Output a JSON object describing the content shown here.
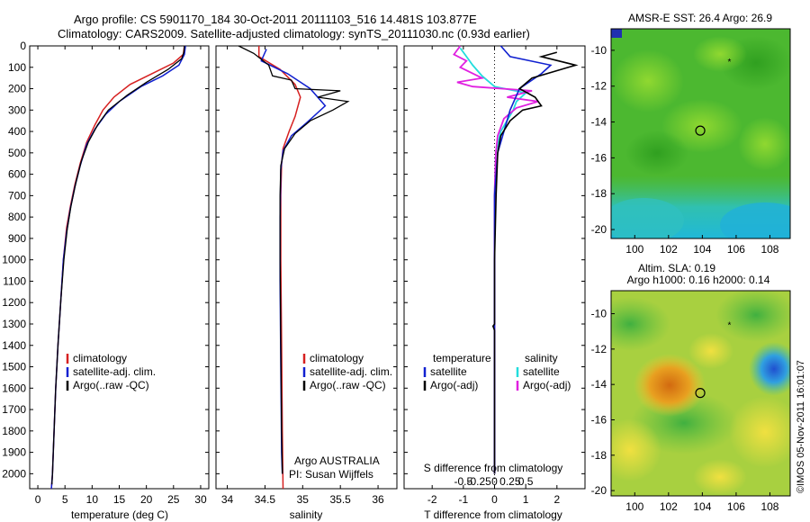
{
  "header": {
    "line1": "Argo profile: CS 5901170_184 30-Oct-2011 20111103_516 14.481S 103.877E",
    "line2": "Climatology: CARS2009. Satellite-adjusted climatology: synTS_20111030.nc (0.93d earlier)"
  },
  "depth_axis": {
    "ticks": [
      0,
      100,
      200,
      300,
      400,
      500,
      600,
      700,
      800,
      900,
      1000,
      1100,
      1200,
      1300,
      1400,
      1500,
      1600,
      1700,
      1800,
      1900,
      2000
    ],
    "range": [
      0,
      2070
    ]
  },
  "colors": {
    "climatology": "#d62020",
    "satellite": "#1020d0",
    "argo": "#000000",
    "sat_sal": "#22dddd",
    "argo_sal": "#e020e0"
  },
  "temperature_panel": {
    "xlabel": "temperature (deg C)",
    "xticks": [
      0,
      5,
      10,
      15,
      20,
      25,
      30
    ],
    "xlim": [
      -1.5,
      31.5
    ],
    "legend": [
      "climatology",
      "satellite-adj. clim.",
      "Argo(..raw -QC)"
    ],
    "series": {
      "climatology": [
        [
          27,
          0
        ],
        [
          26.8,
          40
        ],
        [
          25,
          80
        ],
        [
          21,
          130
        ],
        [
          17,
          180
        ],
        [
          14,
          240
        ],
        [
          12,
          300
        ],
        [
          10.5,
          370
        ],
        [
          9,
          450
        ],
        [
          7.8,
          550
        ],
        [
          6.8,
          650
        ],
        [
          6,
          750
        ],
        [
          5.3,
          850
        ],
        [
          4.7,
          1000
        ],
        [
          4.2,
          1200
        ],
        [
          3.7,
          1400
        ],
        [
          3.3,
          1600
        ],
        [
          3,
          1800
        ],
        [
          2.7,
          2000
        ],
        [
          2.5,
          2070
        ]
      ],
      "satellite": [
        [
          27.2,
          0
        ],
        [
          27,
          40
        ],
        [
          26,
          90
        ],
        [
          23,
          140
        ],
        [
          19,
          190
        ],
        [
          15,
          260
        ],
        [
          12.5,
          320
        ],
        [
          10.5,
          390
        ],
        [
          9,
          460
        ],
        [
          7.8,
          560
        ],
        [
          6.8,
          660
        ],
        [
          6,
          760
        ],
        [
          5.3,
          870
        ],
        [
          4.7,
          1000
        ],
        [
          4.2,
          1200
        ],
        [
          3.7,
          1400
        ],
        [
          3.3,
          1600
        ],
        [
          3,
          1800
        ],
        [
          2.7,
          2000
        ],
        [
          2.5,
          2070
        ]
      ],
      "argo": [
        [
          27,
          0
        ],
        [
          26.9,
          30
        ],
        [
          26.5,
          60
        ],
        [
          24,
          110
        ],
        [
          20,
          170
        ],
        [
          16.5,
          230
        ],
        [
          13,
          300
        ],
        [
          11,
          370
        ],
        [
          9.3,
          450
        ],
        [
          8,
          540
        ],
        [
          7,
          640
        ],
        [
          6.1,
          750
        ],
        [
          5.4,
          860
        ],
        [
          4.8,
          1000
        ],
        [
          4.2,
          1200
        ],
        [
          3.7,
          1400
        ],
        [
          3.3,
          1600
        ],
        [
          3,
          1800
        ],
        [
          2.7,
          2000
        ],
        [
          2.6,
          2050
        ]
      ]
    }
  },
  "salinity_panel": {
    "xlabel": "salinity",
    "xticks": [
      "34",
      "34.5",
      "35",
      "35.5",
      "36"
    ],
    "xtick_values": [
      34,
      34.5,
      35,
      35.5,
      36
    ],
    "xlim": [
      33.85,
      36.25
    ],
    "legend": [
      "climatology",
      "satellite-adj. clim.",
      "Argo(..raw -QC)"
    ],
    "notes": [
      "Argo AUSTRALIA",
      "PI: Susan Wijffels"
    ],
    "series": {
      "climatology": [
        [
          34.42,
          0
        ],
        [
          34.42,
          50
        ],
        [
          34.7,
          110
        ],
        [
          34.9,
          180
        ],
        [
          34.97,
          240
        ],
        [
          34.9,
          330
        ],
        [
          34.82,
          400
        ],
        [
          34.74,
          480
        ],
        [
          34.72,
          550
        ],
        [
          34.71,
          700
        ],
        [
          34.71,
          1000
        ],
        [
          34.72,
          1400
        ],
        [
          34.73,
          1800
        ],
        [
          34.74,
          2070
        ]
      ],
      "satellite": [
        [
          34.52,
          15
        ],
        [
          34.45,
          70
        ],
        [
          34.8,
          130
        ],
        [
          35.1,
          200
        ],
        [
          35.3,
          280
        ],
        [
          35.05,
          360
        ],
        [
          34.85,
          420
        ],
        [
          34.74,
          490
        ],
        [
          34.71,
          580
        ],
        [
          34.7,
          800
        ],
        [
          34.7,
          1100
        ],
        [
          34.71,
          1500
        ],
        [
          34.72,
          1900
        ],
        [
          34.73,
          2000
        ]
      ],
      "argo": [
        [
          34.15,
          0
        ],
        [
          34.35,
          35
        ],
        [
          34.55,
          90
        ],
        [
          34.6,
          140
        ],
        [
          34.85,
          160
        ],
        [
          34.9,
          200
        ],
        [
          35.5,
          210
        ],
        [
          35.2,
          240
        ],
        [
          35.6,
          260
        ],
        [
          35.4,
          300
        ],
        [
          35.1,
          350
        ],
        [
          34.9,
          410
        ],
        [
          34.76,
          480
        ],
        [
          34.71,
          560
        ],
        [
          34.7,
          700
        ],
        [
          34.7,
          1000
        ],
        [
          34.71,
          1400
        ],
        [
          34.72,
          1800
        ],
        [
          34.73,
          2000
        ]
      ]
    }
  },
  "difference_panel": {
    "xlabel": "T difference from climatology",
    "xticks": [
      "-2",
      "-1",
      "0",
      "1",
      "2"
    ],
    "xtick_values": [
      -2,
      -1,
      0,
      1,
      2
    ],
    "xlim": [
      -2.9,
      2.9
    ],
    "s_label": "S difference from climatology",
    "s_ticks": [
      "-0.5",
      "-0.25",
      "0",
      "0.25",
      "0.5"
    ],
    "s_tick_values": [
      -0.5,
      -0.25,
      0,
      0.25,
      0.5
    ],
    "legend_left_title": "temperature",
    "legend_left": [
      "satellite",
      "Argo(-adj)"
    ],
    "legend_right_title": "salinity",
    "legend_right": [
      "satellite",
      "Argo(-adj)"
    ],
    "series": {
      "t_satellite": [
        [
          0.2,
          0
        ],
        [
          0.5,
          50
        ],
        [
          1.8,
          90
        ],
        [
          1.5,
          130
        ],
        [
          0.8,
          200
        ],
        [
          0.5,
          300
        ],
        [
          0.3,
          400
        ],
        [
          0.1,
          500
        ],
        [
          0,
          700
        ],
        [
          0,
          1000
        ],
        [
          0,
          1500
        ],
        [
          0,
          2000
        ]
      ],
      "t_argo": [
        [
          2,
          30
        ],
        [
          1.5,
          50
        ],
        [
          2.6,
          90
        ],
        [
          1.2,
          150
        ],
        [
          0.8,
          200
        ],
        [
          1.3,
          240
        ],
        [
          1.5,
          280
        ],
        [
          0.9,
          300
        ],
        [
          0.5,
          350
        ],
        [
          0.2,
          420
        ],
        [
          0.1,
          500
        ],
        [
          0.05,
          700
        ],
        [
          0,
          1000
        ],
        [
          0,
          1300
        ],
        [
          -0.05,
          1310
        ],
        [
          0,
          1330
        ],
        [
          0,
          1700
        ],
        [
          0,
          2000
        ]
      ],
      "s_satellite": [
        [
          -0.55,
          10
        ],
        [
          -0.45,
          50
        ],
        [
          -0.35,
          90
        ],
        [
          -0.2,
          140
        ],
        [
          0,
          190
        ],
        [
          0.5,
          220
        ],
        [
          0.35,
          260
        ],
        [
          0.3,
          300
        ],
        [
          0.1,
          400
        ],
        [
          0.02,
          500
        ],
        [
          0,
          700
        ],
        [
          0,
          1000
        ],
        [
          0,
          1500
        ],
        [
          0,
          2000
        ]
      ],
      "s_argo": [
        [
          -0.55,
          0
        ],
        [
          -0.65,
          40
        ],
        [
          -0.45,
          70
        ],
        [
          -0.55,
          100
        ],
        [
          -0.2,
          150
        ],
        [
          -0.6,
          170
        ],
        [
          -0.35,
          190
        ],
        [
          0.6,
          210
        ],
        [
          0.2,
          240
        ],
        [
          0.7,
          260
        ],
        [
          0.35,
          290
        ],
        [
          0.15,
          340
        ],
        [
          0.05,
          420
        ],
        [
          0.02,
          500
        ],
        [
          0,
          700
        ],
        [
          0,
          1000
        ],
        [
          0,
          1500
        ],
        [
          0,
          2000
        ]
      ]
    }
  },
  "sst_map": {
    "title": "AMSR-E SST: 26.4 Argo: 26.9",
    "xticks": [
      "100",
      "102",
      "104",
      "106",
      "108"
    ],
    "yticks": [
      "-10",
      "-12",
      "-14",
      "-16",
      "-18",
      "-20"
    ],
    "argo_point": [
      103.877,
      -14.481
    ],
    "prev_point": [
      105.6,
      -10.6
    ]
  },
  "sla_map": {
    "title1": "Altim. SLA: 0.19",
    "title2": "Argo h1000: 0.16 h2000: 0.14",
    "xticks": [
      "100",
      "102",
      "104",
      "106",
      "108"
    ],
    "yticks": [
      "-10",
      "-12",
      "-14",
      "-16",
      "-18",
      "-20"
    ],
    "argo_point": [
      103.877,
      -14.481
    ],
    "prev_point": [
      105.6,
      -10.6
    ]
  },
  "footer_stamp": "©IMOS 05-Nov-2011 16:01:07"
}
